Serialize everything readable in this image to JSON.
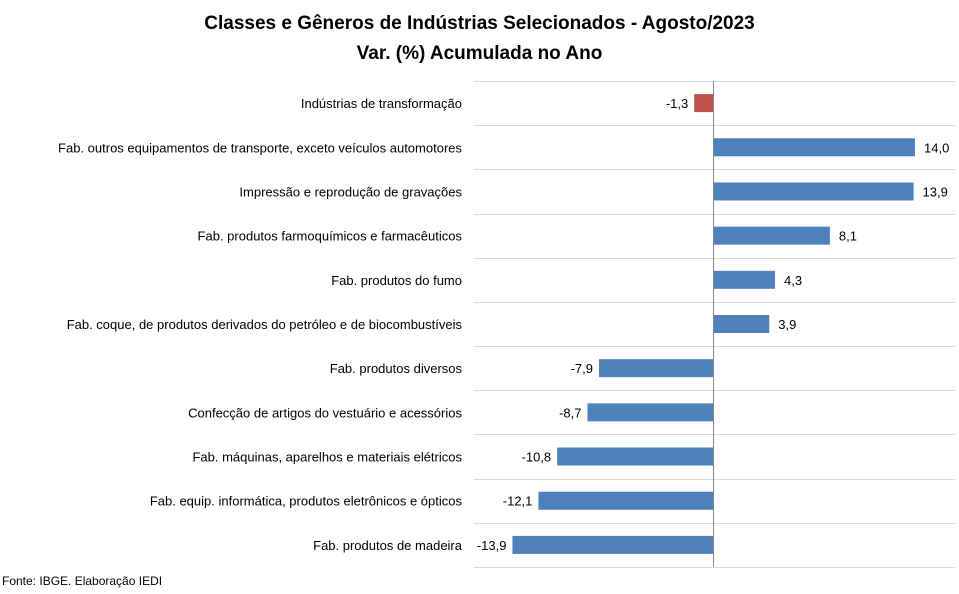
{
  "chart_data": {
    "type": "bar",
    "orientation": "horizontal",
    "title": "Classes e Gêneros de Indústrias Selecionados - Agosto/2023",
    "subtitle": "Var. (%) Acumulada no Ano",
    "categories": [
      "Indústrias de transformação",
      "Fab. outros equipamentos de transporte, exceto veículos automotores",
      "Impressão e reprodução de gravações",
      "Fab. produtos farmoquímicos e farmacêuticos",
      "Fab. produtos do fumo",
      "Fab. coque, de produtos derivados do petróleo e de biocombustíveis",
      "Fab. produtos diversos",
      "Confecção de artigos do vestuário e acessórios",
      "Fab. máquinas, aparelhos e materiais elétricos",
      "Fab. equip. informática, produtos eletrônicos e ópticos",
      "Fab. produtos de madeira"
    ],
    "values": [
      -1.3,
      14.0,
      13.9,
      8.1,
      4.3,
      3.9,
      -7.9,
      -8.7,
      -10.8,
      -12.1,
      -13.9
    ],
    "labels": [
      "-1,3",
      "14,0",
      "13,9",
      "8,1",
      "4,3",
      "3,9",
      "-7,9",
      "-8,7",
      "-10,8",
      "-12,1",
      "-13,9"
    ],
    "xlim": [
      -14,
      14
    ],
    "grid": "horizontal lines between categories",
    "colors": {
      "highlight": "#c0504d",
      "bars": "#4f81bd",
      "grid": "#d9d9d9",
      "axis": "#868686"
    },
    "highlight_index": 0
  },
  "footer": {
    "source": "Fonte: IBGE. Elaboração IEDI"
  }
}
